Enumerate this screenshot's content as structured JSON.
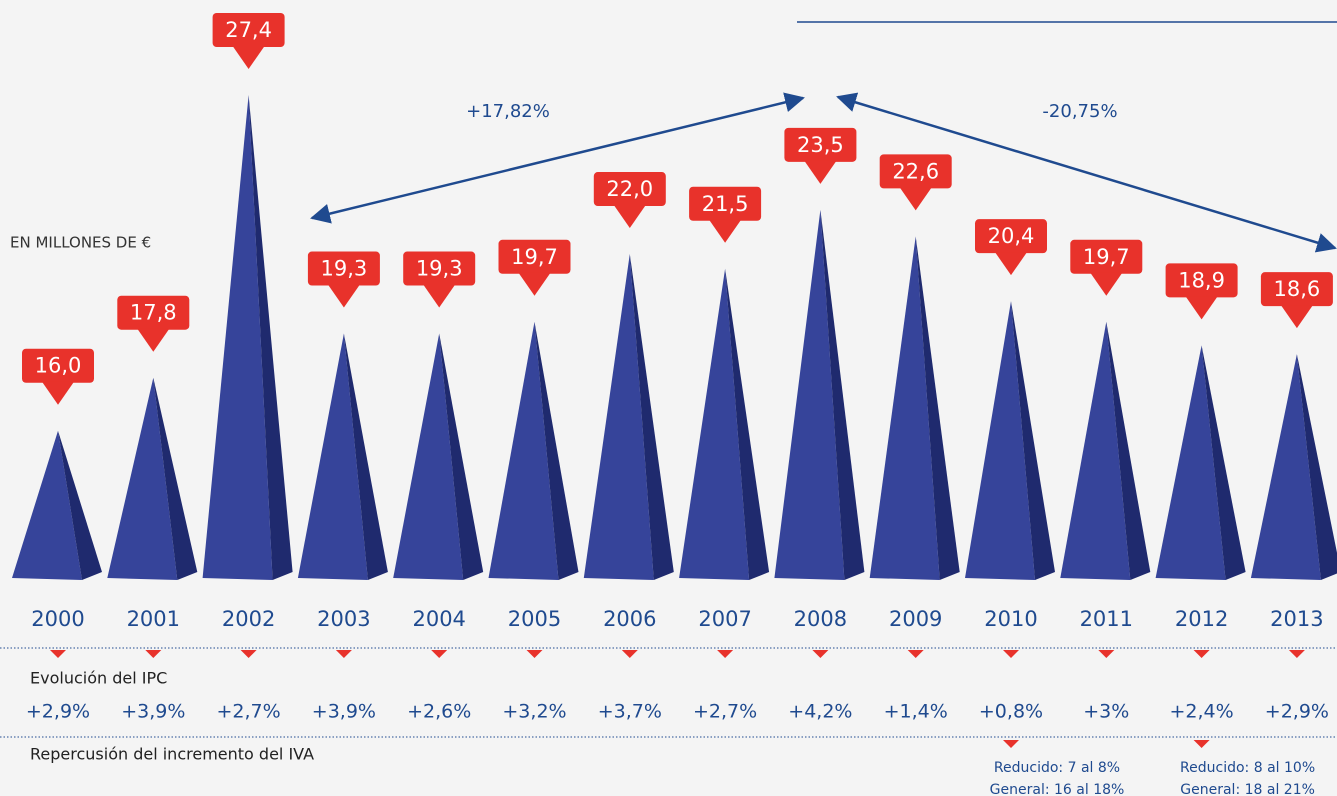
{
  "chart_data": {
    "type": "pyramid",
    "unit_label": "EN MILLONES DE €",
    "categories": [
      "2000",
      "2001",
      "2002",
      "2003",
      "2004",
      "2005",
      "2006",
      "2007",
      "2008",
      "2009",
      "2010",
      "2011",
      "2012",
      "2013"
    ],
    "values": [
      16.0,
      17.8,
      27.4,
      19.3,
      19.3,
      19.7,
      22.0,
      21.5,
      23.5,
      22.6,
      20.4,
      19.7,
      18.9,
      18.6
    ],
    "value_labels": [
      "16,0",
      "17,8",
      "27,4",
      "19,3",
      "19,3",
      "19,7",
      "22,0",
      "21,5",
      "23,5",
      "22,6",
      "20,4",
      "19,7",
      "18,9",
      "18,6"
    ],
    "color": "#36449a",
    "side_color": "#1f2a6e",
    "label_color": "#e8322b",
    "ylim": [
      11,
      28.5
    ],
    "annotations": [
      {
        "text": "+17,82%",
        "value": 17.82
      },
      {
        "text": "-20,75%",
        "value": -20.75
      }
    ],
    "ipc": {
      "label": "Evolución del IPC",
      "values": [
        2.9,
        3.9,
        2.7,
        3.9,
        2.6,
        3.2,
        3.7,
        2.7,
        4.2,
        1.4,
        0.8,
        3,
        2.4,
        2.9
      ],
      "value_labels": [
        "+2,9%",
        "+3,9%",
        "+2,7%",
        "+3,9%",
        "+2,6%",
        "+3,2%",
        "+3,7%",
        "+2,7%",
        "+4,2%",
        "+1,4%",
        "+0,8%",
        "+3%",
        "+2,4%",
        "+2,9%"
      ]
    },
    "iva": {
      "label": "Repercusión del incremento del IVA",
      "notes": [
        {
          "category": "2010",
          "lines": [
            "Reducido: 7 al 8%",
            "General: 16 al 18%"
          ]
        },
        {
          "category": "2012",
          "lines": [
            "Reducido: 8 al 10%",
            "General: 18 al 21%"
          ]
        }
      ]
    }
  }
}
